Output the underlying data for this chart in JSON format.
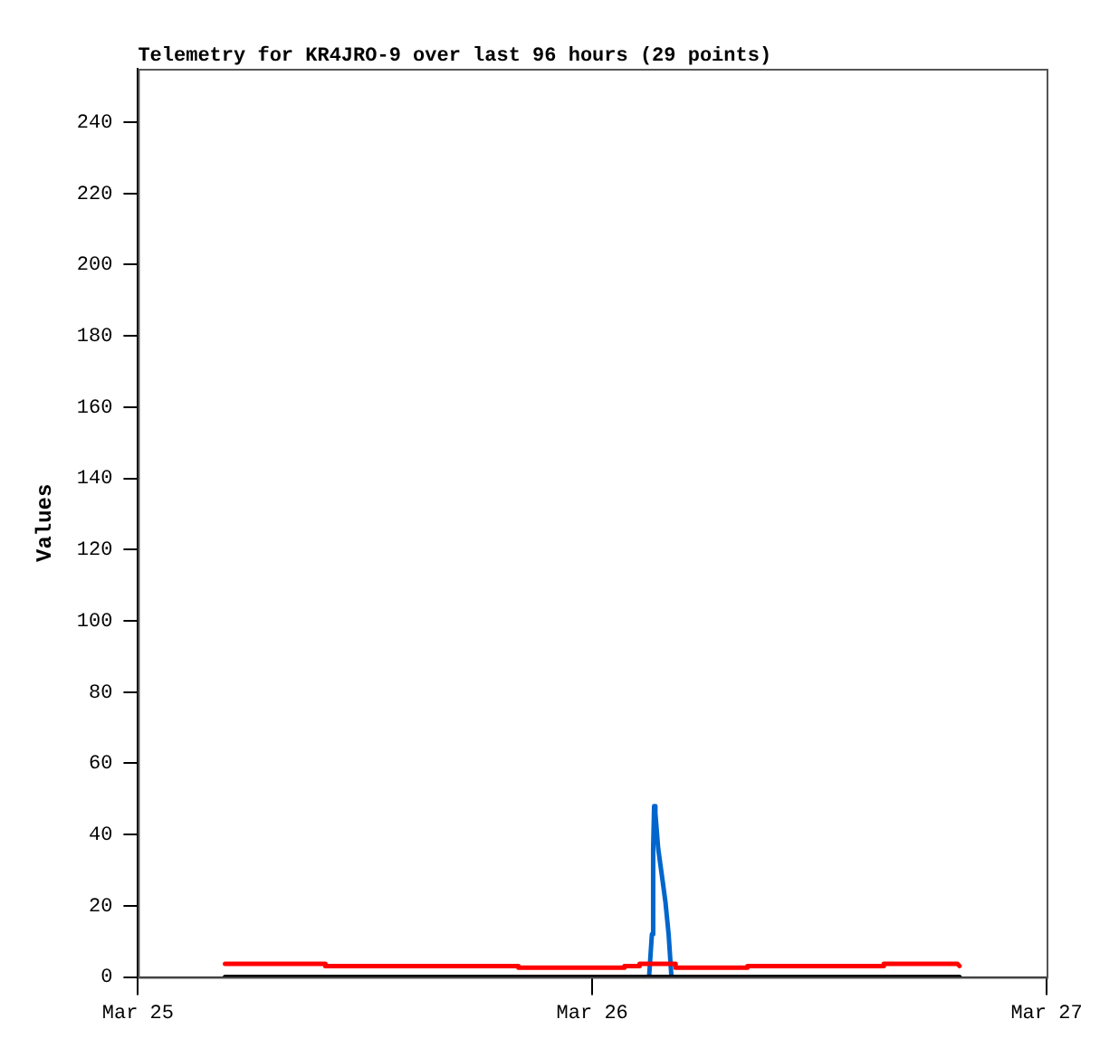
{
  "chart_data": {
    "type": "line",
    "title": "Telemetry for KR4JRO-9 over last 96 hours (29 points)",
    "ylabel": "Values",
    "xlim": [
      "--03-25",
      "--03-27"
    ],
    "xticks": [
      {
        "value": "--03-25",
        "label": "Mar 25"
      },
      {
        "value": "--03-26",
        "label": "Mar 26"
      },
      {
        "value": "--03-27",
        "label": "Mar 27"
      }
    ],
    "ylim": [
      0,
      255
    ],
    "yticks": [
      0,
      20,
      40,
      60,
      80,
      100,
      120,
      140,
      160,
      180,
      200,
      220,
      240
    ],
    "grid": false,
    "legend": false,
    "marker": "none",
    "line_style": "solid",
    "series": [
      {
        "color": "#000000",
        "x": [
          "--03-25T04:36",
          "--03-26T19:24"
        ],
        "values": [
          0,
          0
        ]
      },
      {
        "color": "#ff0000",
        "x": [
          "--03-25T04:36",
          "--03-25T09:54",
          "--03-25T09:54",
          "--03-25T20:06",
          "--03-25T20:06",
          "--03-26T01:42",
          "--03-26T01:42",
          "--03-26T02:30",
          "--03-26T02:30",
          "--03-26T04:24",
          "--03-26T04:24",
          "--03-26T08:12",
          "--03-26T08:12",
          "--03-26T15:24",
          "--03-26T15:24",
          "--03-26T19:18",
          "--03-26T19:24"
        ],
        "values": [
          3.7,
          3.7,
          3.1,
          3.1,
          2.6,
          2.6,
          3.1,
          3.1,
          3.7,
          3.7,
          2.6,
          2.6,
          3.1,
          3.1,
          3.7,
          3.7,
          3.1
        ]
      },
      {
        "color": "#0066cc",
        "x": [
          "--03-26T03:00",
          "--03-26T03:09",
          "--03-26T03:13",
          "--03-26T03:16",
          "--03-26T03:20",
          "--03-26T03:29",
          "--03-26T03:43",
          "--03-26T03:52",
          "--03-26T04:02",
          "--03-26T04:11"
        ],
        "values": [
          0,
          12,
          36,
          48,
          46,
          36,
          27,
          21,
          12,
          0
        ]
      }
    ]
  }
}
